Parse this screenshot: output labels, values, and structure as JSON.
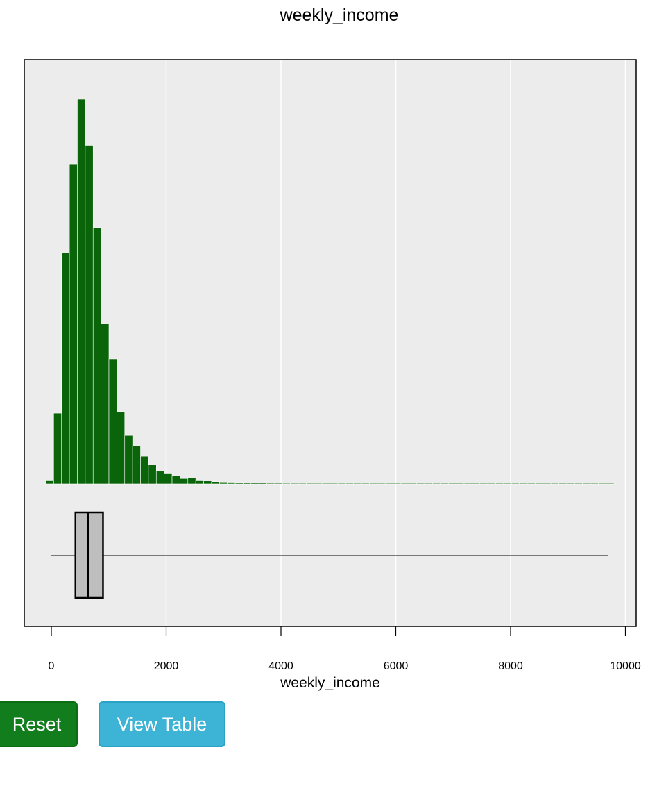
{
  "chart_data": {
    "type": "bar",
    "title": "weekly_income",
    "xlabel": "weekly_income",
    "ylabel": "",
    "xlim": [
      -500,
      10200
    ],
    "xticks": [
      0,
      2000,
      4000,
      6000,
      8000,
      10000
    ],
    "xtick_labels": [
      "0",
      "2000",
      "4000",
      "6000",
      "8000",
      "10000"
    ],
    "grid": true,
    "bin_width": 137.5,
    "bin_start": -97,
    "bar_color": "#0a640a",
    "panel_color": "#ececec",
    "histogram_counts": [
      1.0,
      18.4,
      60.0,
      83.2,
      100.0,
      88.0,
      66.6,
      41.6,
      32.5,
      18.8,
      12.6,
      9.8,
      7.2,
      5.0,
      3.3,
      2.8,
      2.1,
      1.4,
      1.5,
      1.0,
      0.8,
      0.6,
      0.5,
      0.45,
      0.35,
      0.3,
      0.3,
      0.25,
      0.2,
      0.2,
      0.15,
      0.15,
      0.1,
      0.1,
      0.1,
      0.1,
      0.1,
      0.1,
      0.1,
      0.05,
      0.05,
      0.05,
      0.05,
      0.05,
      0.05,
      0.05,
      0.05,
      0.05,
      0.05,
      0.05,
      0.05,
      0.05,
      0.05,
      0.05,
      0.05,
      0.05,
      0.05,
      0.05,
      0.05,
      0.05,
      0.05,
      0.05,
      0.05,
      0.05,
      0.05,
      0.05,
      0.05,
      0.05,
      0.05,
      0.05,
      0.05,
      0.05
    ],
    "boxplot": {
      "whisker_low": 0,
      "q1": 420,
      "median": 640,
      "q3": 900,
      "whisker_high": 9700,
      "box_color": "#bebebe"
    }
  },
  "buttons": {
    "reset_label": "Reset",
    "reset_color": "#117d1d",
    "view_table_label": "View Table",
    "view_table_color": "#3db4d6"
  }
}
